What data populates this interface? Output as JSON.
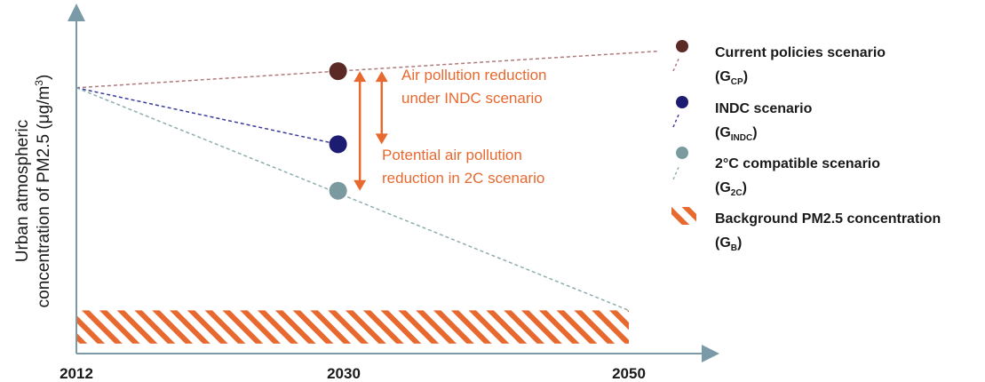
{
  "chart_data": {
    "type": "line",
    "title": "",
    "xlabel": "",
    "ylabel": "Urban atmospheric concentration of PM2.5 (μg/m³)",
    "y_axis_line1": "Urban atmospheric",
    "y_axis_line2_prefix": "concentration of PM2.5 (μg/m",
    "y_axis_line2_sup": "3",
    "y_axis_line2_suffix": ")",
    "x_ticks": [
      "2012",
      "2030",
      "2050"
    ],
    "x_positions": [
      2012,
      2030,
      2050
    ],
    "xlim": [
      2012,
      2053
    ],
    "ylim": [
      0,
      100
    ],
    "series": [
      {
        "name": "Current policies scenario",
        "symbol": "G",
        "sub": "CP",
        "color": "#5b2a27",
        "line_color": "#b07a7f",
        "points": [
          [
            2012,
            80
          ],
          [
            2030,
            85
          ],
          [
            2052,
            91
          ]
        ],
        "marker": [
          2030,
          85
        ]
      },
      {
        "name": "INDC scenario",
        "symbol": "G",
        "sub": "INDC",
        "color": "#1c1c73",
        "line_color": "#3a3a9a",
        "points": [
          [
            2012,
            80
          ],
          [
            2030,
            63
          ]
        ],
        "marker": [
          2030,
          63
        ]
      },
      {
        "name": "2°C compatible scenario",
        "symbol": "G",
        "sub": "2C",
        "color": "#7b9aa0",
        "line_color": "#8fadb0",
        "points": [
          [
            2012,
            80
          ],
          [
            2050,
            13
          ]
        ],
        "marker": [
          2030,
          49
        ]
      },
      {
        "name": "Background PM2.5 concentration",
        "symbol": "G",
        "sub": "B",
        "color": "#e8692f",
        "band": [
          2012,
          2050,
          3,
          13
        ]
      }
    ],
    "annotations": [
      {
        "line1": "Air pollution reduction",
        "line2": "under INDC scenario",
        "arrow": [
          2033,
          63,
          85
        ]
      },
      {
        "line1": "Potential air pollution",
        "line2": "reduction in 2C scenario",
        "arrow": [
          2031.5,
          49,
          85
        ]
      }
    ],
    "legend_position": "right",
    "colors": {
      "axis": "#7a9aa8",
      "annotation": "#e8692f"
    }
  }
}
